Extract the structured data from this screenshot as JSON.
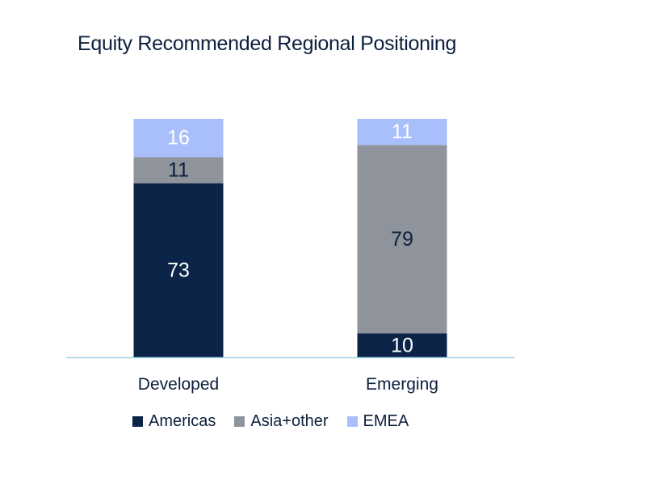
{
  "chart_data": {
    "type": "bar",
    "stacked": true,
    "title": "Equity Recommended Regional Positioning",
    "categories": [
      "Developed",
      "Emerging"
    ],
    "series": [
      {
        "name": "Americas",
        "values": [
          73,
          10
        ],
        "color": "#0b2447"
      },
      {
        "name": "Asia+other",
        "values": [
          11,
          79
        ],
        "color": "#8f939c"
      },
      {
        "name": "EMEA",
        "values": [
          16,
          11
        ],
        "color": "#a9bffb"
      }
    ],
    "ylim": [
      0,
      100
    ],
    "grid": false,
    "legend_position": "bottom",
    "label_colors": {
      "Americas": "#ffffff",
      "Asia+other": "#0c1f3d",
      "EMEA": "#ffffff"
    },
    "axis_color": "#a6d2ea",
    "text_color": "#0c1f3d"
  }
}
